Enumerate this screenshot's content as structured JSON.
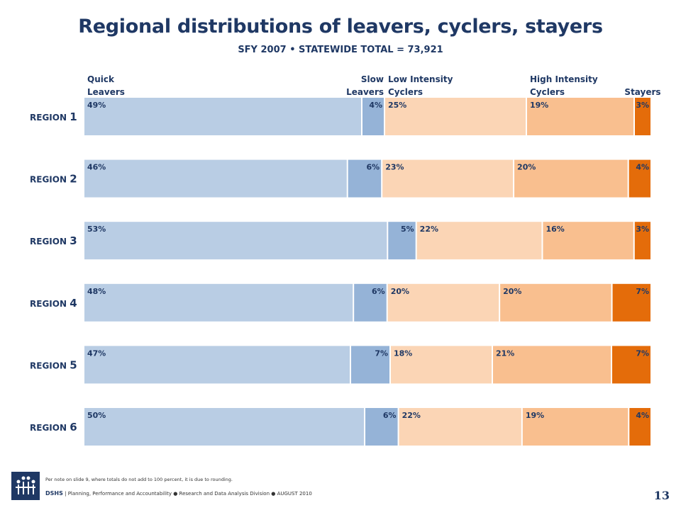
{
  "title": "Regional distributions of leavers, cyclers, stayers",
  "subtitle": "SFY 2007 • STATEWIDE TOTAL = 73,921",
  "colors": {
    "quick_leavers": "#b9cde4",
    "slow_leavers": "#95b3d7",
    "low_intensity": "#fbd5b5",
    "high_intensity": "#f9bf8f",
    "stayers": "#e46c0a",
    "text": "#1f3864"
  },
  "chart_data": {
    "type": "bar",
    "orientation": "horizontal",
    "stacked": true,
    "title": "Regional distributions of leavers, cyclers, stayers",
    "subtitle": "SFY 2007 • STATEWIDE TOTAL = 73,921",
    "categories": [
      "1",
      "2",
      "3",
      "4",
      "5",
      "6"
    ],
    "category_prefix": "REGION",
    "series": [
      {
        "name": "Quick Leavers",
        "header_lines": [
          "Quick",
          "Leavers"
        ],
        "values": [
          49,
          46,
          53,
          48,
          47,
          50
        ]
      },
      {
        "name": "Slow Leavers",
        "header_lines": [
          "Slow",
          "Leavers"
        ],
        "values": [
          4,
          6,
          5,
          6,
          7,
          6
        ]
      },
      {
        "name": "Low Intensity Cyclers",
        "header_lines": [
          "Low Intensity",
          "Cyclers"
        ],
        "values": [
          25,
          23,
          22,
          20,
          18,
          22
        ]
      },
      {
        "name": "High Intensity Cyclers",
        "header_lines": [
          "High Intensity",
          "Cyclers"
        ],
        "values": [
          19,
          20,
          16,
          20,
          21,
          19
        ]
      },
      {
        "name": "Stayers",
        "header_lines": [
          "Stayers"
        ],
        "values": [
          3,
          4,
          3,
          7,
          7,
          4
        ]
      }
    ],
    "value_suffix": "%",
    "xlim": [
      0,
      100
    ]
  },
  "footer": {
    "note": "Per note on slide 9, where totals do not add to 100 percent, it is due to rounding.",
    "org": "DSHS",
    "line": "Planning, Performance and Accountability  ●  Research and Data Analysis Division  ●  AUGUST  2010"
  },
  "page_number": "13"
}
